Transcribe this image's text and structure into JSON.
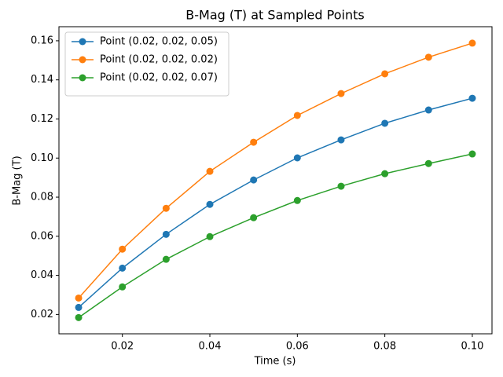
{
  "chart_data": {
    "type": "line",
    "title": "B-Mag (T) at Sampled Points",
    "x_label": "Time (s)",
    "y_label": "B-Mag (T)",
    "x": [
      0.01,
      0.02,
      0.03,
      0.04,
      0.05,
      0.06,
      0.07,
      0.08,
      0.09,
      0.1
    ],
    "series": [
      {
        "name": "Point (0.02, 0.02, 0.05)",
        "color": "#1f77b4",
        "values": [
          0.0236,
          0.0437,
          0.061,
          0.0763,
          0.0888,
          0.1001,
          0.1093,
          0.1178,
          0.1246,
          0.1306
        ]
      },
      {
        "name": "Point (0.02, 0.02, 0.02)",
        "color": "#ff7f0e",
        "values": [
          0.0284,
          0.0534,
          0.0743,
          0.0932,
          0.1081,
          0.1218,
          0.133,
          0.1431,
          0.1516,
          0.1588
        ]
      },
      {
        "name": "Point (0.02, 0.02, 0.07)",
        "color": "#2ca02c",
        "values": [
          0.0184,
          0.0341,
          0.0482,
          0.0598,
          0.0695,
          0.0783,
          0.0856,
          0.092,
          0.0972,
          0.1021
        ]
      }
    ],
    "xlim": [
      0.0055,
      0.1045
    ],
    "ylim": [
      0.0101,
      0.1672
    ],
    "xticks": [
      0.02,
      0.04,
      0.06,
      0.08,
      {
        "value": 0.1,
        "label": "0.10"
      }
    ],
    "yticks": [
      0.02,
      0.04,
      0.06,
      0.08,
      {
        "value": 0.1,
        "label": "0.10"
      },
      0.12,
      0.14,
      0.16
    ],
    "grid": false,
    "legend": "upper left"
  }
}
